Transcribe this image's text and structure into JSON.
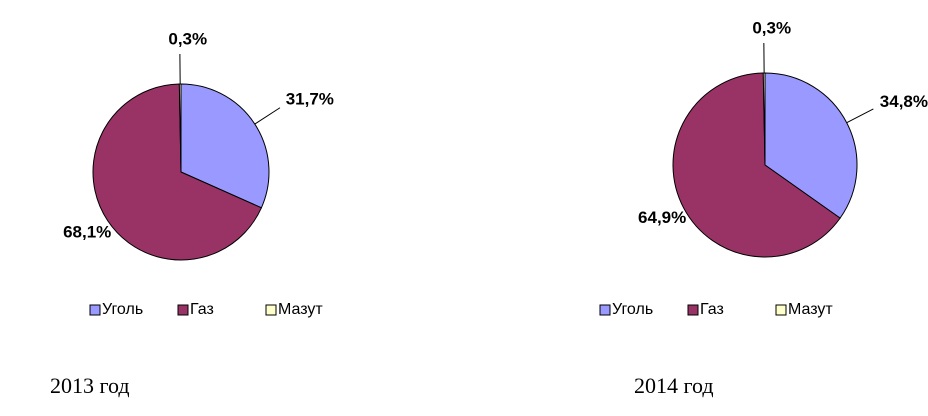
{
  "chart_data": [
    {
      "type": "pie",
      "title": "2013 год",
      "categories": [
        "Уголь",
        "Газ",
        "Мазут"
      ],
      "values": [
        31.7,
        68.1,
        0.3
      ],
      "value_labels": [
        "31,7%",
        "68,1%",
        "0,3%"
      ],
      "colors": [
        "#9999ff",
        "#993366",
        "#ffffcc"
      ],
      "legend": "bottom"
    },
    {
      "type": "pie",
      "title": "2014 год",
      "categories": [
        "Уголь",
        "Газ",
        "Мазут"
      ],
      "values": [
        34.8,
        64.9,
        0.3
      ],
      "value_labels": [
        "34,8%",
        "64,9%",
        "0,3%"
      ],
      "colors": [
        "#9999ff",
        "#993366",
        "#ffffcc"
      ],
      "legend": "bottom"
    }
  ]
}
